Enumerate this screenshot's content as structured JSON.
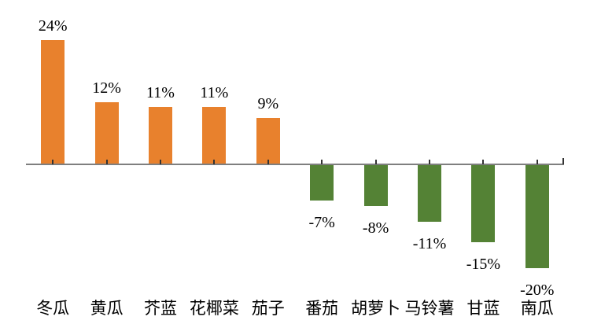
{
  "chart_data": {
    "type": "bar",
    "title": "",
    "xlabel": "",
    "ylabel": "",
    "categories": [
      "冬瓜",
      "黄瓜",
      "芥蓝",
      "花椰菜",
      "茄子",
      "番茄",
      "胡萝卜",
      "马铃薯",
      "甘蓝",
      "南瓜"
    ],
    "values": [
      24,
      12,
      11,
      11,
      9,
      -7,
      -8,
      -11,
      -15,
      -20
    ],
    "value_labels": [
      "24%",
      "12%",
      "11%",
      "11%",
      "9%",
      "-7%",
      "-8%",
      "-11%",
      "-15%",
      "-20%"
    ],
    "ylim": [
      -30,
      30
    ],
    "baseline_value": 0,
    "grid": false,
    "legend": false,
    "colors": {
      "positive_bar": "#E8812D",
      "negative_bar": "#548235",
      "axis_line": "#7F7F7F",
      "tick": "#333333",
      "text": "#000000",
      "background": "#FFFFFF"
    }
  }
}
